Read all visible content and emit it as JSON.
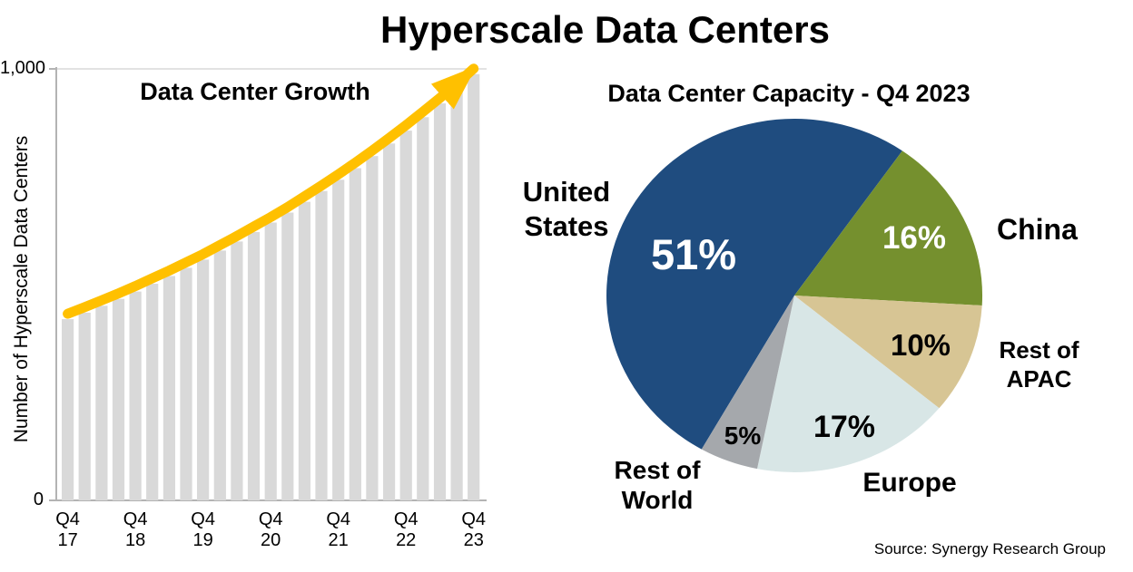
{
  "main": {
    "title": "Hyperscale Data Centers"
  },
  "source": {
    "text": "Source: Synergy Research Group"
  },
  "colors": {
    "bar": "#D9D9D9",
    "arrow": "#FFC000",
    "axis": "#B3B3B3",
    "gridline": "#D9D9D9",
    "pie_us": "#1F4C7F",
    "pie_china": "#75902E",
    "pie_apac": "#D7C594",
    "pie_europe": "#D8E6E6",
    "pie_row": "#A5A8AC"
  },
  "chart_data": [
    {
      "type": "bar",
      "title": "Data Center Growth",
      "xlabel": "",
      "ylabel": "Number of Hyperscale Data Centers",
      "ylim": [
        0,
        1000
      ],
      "ytick_labels": [
        "0",
        "1,000"
      ],
      "grid": "top gridline at 1000 only",
      "bar_color": "#D9D9D9",
      "trend_arrow_color": "#FFC000",
      "categories_note": "quarterly bars from Q4 2017 to Q4 2023, labeled every 4th bar",
      "x_ticks": [
        {
          "index": 0,
          "label": "Q4\n17"
        },
        {
          "index": 4,
          "label": "Q4\n18"
        },
        {
          "index": 8,
          "label": "Q4\n19"
        },
        {
          "index": 12,
          "label": "Q4\n20"
        },
        {
          "index": 16,
          "label": "Q4\n21"
        },
        {
          "index": 20,
          "label": "Q4\n22"
        },
        {
          "index": 24,
          "label": "Q4\n23"
        }
      ],
      "values": [
        420,
        435,
        451,
        467,
        484,
        502,
        520,
        539,
        558,
        579,
        600,
        622,
        644,
        667,
        692,
        717,
        743,
        770,
        798,
        827,
        857,
        888,
        920,
        953,
        988
      ]
    },
    {
      "type": "pie",
      "title": "Data Center Capacity - Q4 2023",
      "legend_position": "labels around pie",
      "slices": [
        {
          "label": "United\nStates",
          "pct": 51,
          "pct_label": "51%",
          "color": "#1F4C7F",
          "pct_text_color": "#FFFFFF"
        },
        {
          "label": "China",
          "pct": 16,
          "pct_label": "16%",
          "color": "#75902E",
          "pct_text_color": "#FFFFFF"
        },
        {
          "label": "Rest of\nAPAC",
          "pct": 10,
          "pct_label": "10%",
          "color": "#D7C594",
          "pct_text_color": "#000000"
        },
        {
          "label": "Europe",
          "pct": 17,
          "pct_label": "17%",
          "color": "#D8E6E6",
          "pct_text_color": "#000000"
        },
        {
          "label": "Rest of\nWorld",
          "pct": 5,
          "pct_label": "5%",
          "color": "#A5A8AC",
          "pct_text_color": "#000000"
        }
      ]
    }
  ]
}
